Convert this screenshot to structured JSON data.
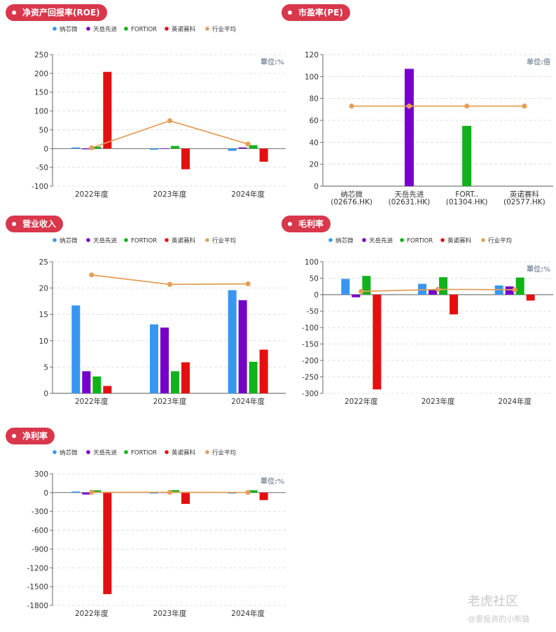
{
  "legend": [
    "纳芯微",
    "天岳先进",
    "FORTIOR",
    "英诺赛科",
    "行业平均"
  ],
  "colors": {
    "series": [
      "#3796f0",
      "#7500c9",
      "#10b31a",
      "#e60f0f",
      "#e2a05a"
    ],
    "pill": "#d9374b",
    "axis": "#555555",
    "grid": "#d8d8d8",
    "unit": "#8a95a5"
  },
  "watermark": {
    "brand": "老虎社区",
    "author": "@爱投资的小熊猫"
  },
  "chart_data": [
    {
      "id": "roe",
      "type": "bar",
      "title": "净资产回报率(ROE)",
      "unit": "單位:%",
      "categories": [
        "2022年度",
        "2023年度",
        "2024年度"
      ],
      "ylim": [
        -100,
        250
      ],
      "yticks": [
        -100,
        -50,
        0,
        50,
        100,
        150,
        200,
        250
      ],
      "series": [
        {
          "name": "纳芯微",
          "values": [
            3,
            -3,
            -6
          ]
        },
        {
          "name": "天岳先进",
          "values": [
            -2,
            0,
            3
          ]
        },
        {
          "name": "FORTIOR",
          "values": [
            5,
            7,
            9
          ]
        },
        {
          "name": "英诺赛科",
          "values": [
            204,
            -55,
            -35
          ]
        }
      ],
      "line": {
        "name": "行业平均",
        "values": [
          2,
          74,
          12
        ]
      },
      "legend": true
    },
    {
      "id": "pe",
      "type": "bar",
      "title": "市盈率(PE)",
      "unit": "单位:倍",
      "categories": [
        "纳芯微\n(02676.HK)",
        "天岳先进\n(02631.HK)",
        "FORT..\n(01304.HK)",
        "英诺赛科\n(02577.HK)"
      ],
      "ylim": [
        0,
        120
      ],
      "yticks": [
        0,
        20,
        40,
        60,
        80,
        100,
        120
      ],
      "bars": [
        0,
        107,
        55,
        0
      ],
      "bar_colors": [
        "#3796f0",
        "#7500c9",
        "#10b31a",
        "#e60f0f"
      ],
      "line": {
        "name": "行业平均",
        "values": [
          73,
          73,
          73,
          73
        ]
      },
      "legend": false
    },
    {
      "id": "revenue",
      "type": "bar",
      "title": "营业收入",
      "unit": "",
      "categories": [
        "2022年度",
        "2023年度",
        "2024年度"
      ],
      "ylim": [
        0,
        25
      ],
      "yticks": [
        0,
        5,
        10,
        15,
        20,
        25
      ],
      "series": [
        {
          "name": "纳芯微",
          "values": [
            16.7,
            13.1,
            19.6
          ]
        },
        {
          "name": "天岳先进",
          "values": [
            4.2,
            12.5,
            17.7
          ]
        },
        {
          "name": "FORTIOR",
          "values": [
            3.2,
            4.2,
            6.0
          ]
        },
        {
          "name": "英诺赛科",
          "values": [
            1.4,
            5.9,
            8.3
          ]
        }
      ],
      "line": {
        "name": "行业平均",
        "values": [
          22.5,
          20.7,
          20.8
        ]
      },
      "legend": true
    },
    {
      "id": "gross_margin",
      "type": "bar",
      "title": "毛利率",
      "unit": "單位:%",
      "categories": [
        "2022年度",
        "2023年度",
        "2024年度"
      ],
      "ylim": [
        -300,
        100
      ],
      "yticks": [
        -300,
        -250,
        -200,
        -150,
        -100,
        -50,
        0,
        50,
        100
      ],
      "series": [
        {
          "name": "纳芯微",
          "values": [
            48,
            33,
            28
          ]
        },
        {
          "name": "天岳先进",
          "values": [
            -8,
            15,
            25
          ]
        },
        {
          "name": "FORTIOR",
          "values": [
            57,
            53,
            52
          ]
        },
        {
          "name": "英诺赛科",
          "values": [
            -288,
            -60,
            -18
          ]
        }
      ],
      "line": {
        "name": "行业平均",
        "values": [
          10,
          16,
          15
        ]
      },
      "legend": true
    },
    {
      "id": "net_margin",
      "type": "bar",
      "title": "净利率",
      "unit": "單位:%",
      "categories": [
        "2022年度",
        "2023年度",
        "2024年度"
      ],
      "ylim": [
        -1800,
        300
      ],
      "yticks": [
        -1800,
        -1500,
        -1200,
        -900,
        -600,
        -300,
        0,
        300
      ],
      "series": [
        {
          "name": "纳芯微",
          "values": [
            18,
            -15,
            -15
          ]
        },
        {
          "name": "天岳先进",
          "values": [
            -30,
            0,
            5
          ]
        },
        {
          "name": "FORTIOR",
          "values": [
            38,
            40,
            38
          ]
        },
        {
          "name": "英诺赛科",
          "values": [
            -1620,
            -180,
            -120
          ]
        }
      ],
      "line": {
        "name": "行业平均",
        "values": [
          5,
          5,
          3
        ]
      },
      "legend": true
    }
  ]
}
